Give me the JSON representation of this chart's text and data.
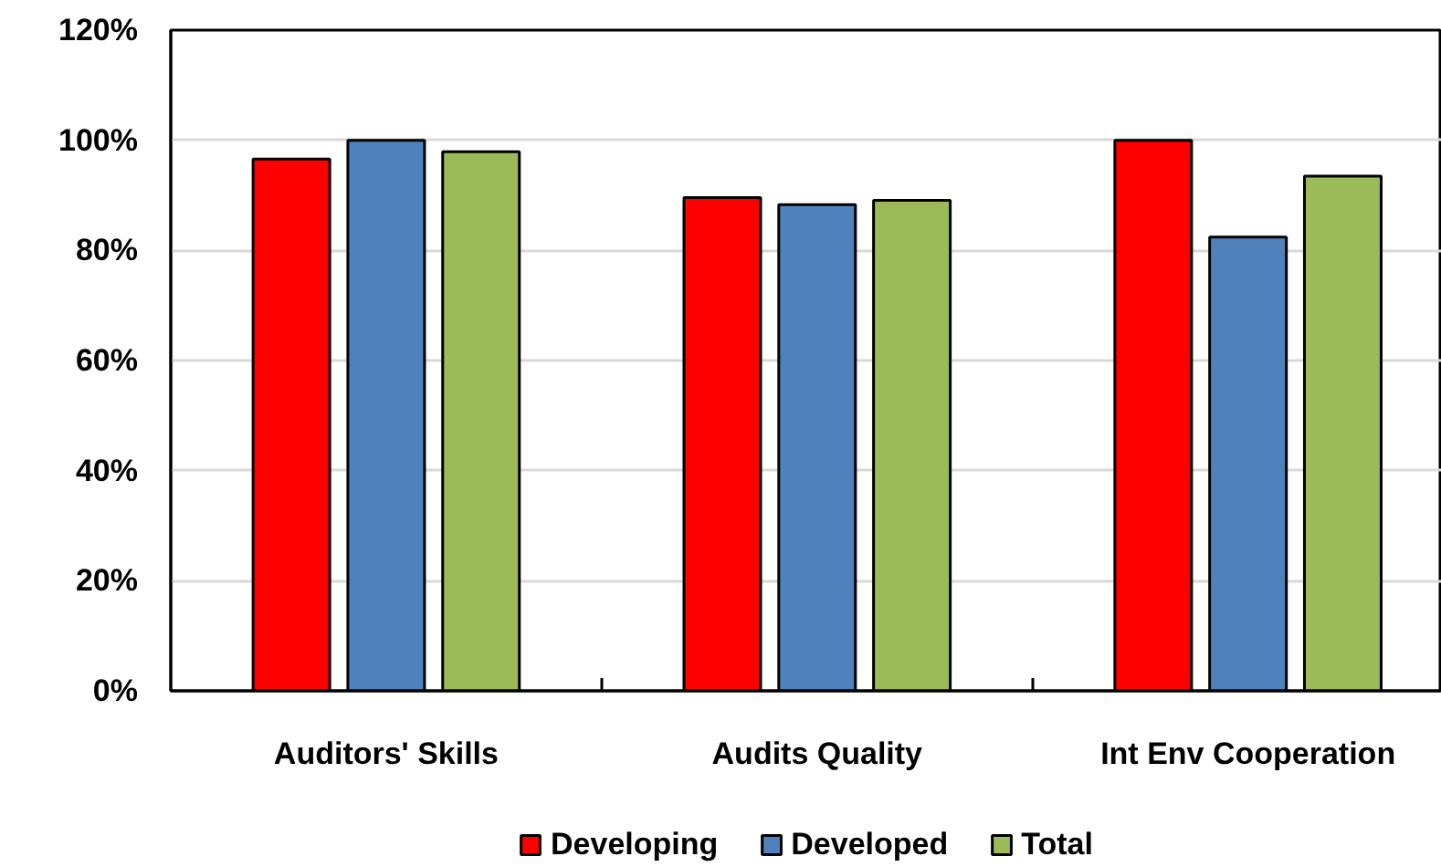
{
  "chart_data": {
    "type": "bar",
    "categories": [
      "Auditors' Skills",
      "Audits Quality",
      "Int Env Cooperation"
    ],
    "series": [
      {
        "name": "Developing",
        "color": "#ff0000",
        "values": [
          96.6,
          89.6,
          100
        ]
      },
      {
        "name": "Developed",
        "color": "#4f81bd",
        "values": [
          100,
          88.3,
          82.4
        ]
      },
      {
        "name": "Total",
        "color": "#9bbb59",
        "values": [
          97.9,
          89.1,
          93.5
        ]
      }
    ],
    "ylim": [
      0,
      120
    ],
    "yticks": [
      {
        "value": 0,
        "label": "0%"
      },
      {
        "value": 20,
        "label": "20%"
      },
      {
        "value": 40,
        "label": "40%"
      },
      {
        "value": 60,
        "label": "60%"
      },
      {
        "value": 80,
        "label": "80%"
      },
      {
        "value": 100,
        "label": "100%"
      },
      {
        "value": 120,
        "label": "120%"
      }
    ],
    "grid": "y",
    "legend": "bottom"
  }
}
